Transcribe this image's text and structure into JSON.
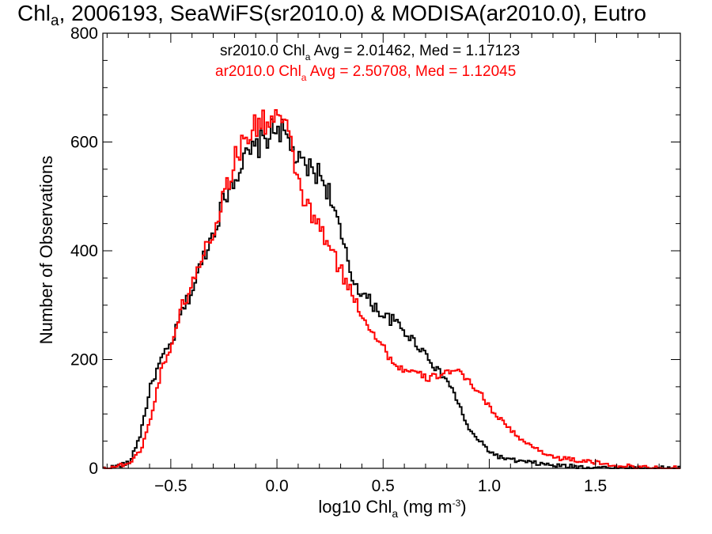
{
  "chart_data": {
    "type": "line",
    "step": true,
    "title": {
      "main": "Chl",
      "sub": "a",
      "rest": ", 2006193, SeaWiFS(sr2010.0) & MODISA(ar2010.0), Eutro"
    },
    "xlabel": {
      "pre": "log10 Chl",
      "sub": "a",
      "mid": " (mg m",
      "sup": "-3",
      "post": ")"
    },
    "ylabel": "Number of Observations",
    "xlim": [
      -0.82,
      1.9
    ],
    "ylim": [
      0,
      800
    ],
    "x_ticks": [
      -0.5,
      0.0,
      0.5,
      1.0,
      1.5
    ],
    "x_tick_labels": [
      "−0.5",
      "0.0",
      "0.5",
      "1.0",
      "1.5"
    ],
    "y_ticks": [
      0,
      200,
      400,
      600,
      800
    ],
    "y_tick_labels": [
      "0",
      "200",
      "400",
      "600",
      "800"
    ],
    "grid": false,
    "legend_position": "top-center",
    "series": [
      {
        "name": "sr2010.0",
        "color": "#000000",
        "legend": {
          "pre": "sr2010.0 Chl",
          "sub": "a",
          "post": " Avg = 2.01462, Med = 1.17123"
        },
        "x": [
          -0.8,
          -0.7,
          -0.65,
          -0.6,
          -0.55,
          -0.5,
          -0.45,
          -0.4,
          -0.35,
          -0.3,
          -0.25,
          -0.2,
          -0.15,
          -0.1,
          -0.05,
          0.0,
          0.05,
          0.1,
          0.15,
          0.2,
          0.25,
          0.3,
          0.35,
          0.4,
          0.45,
          0.5,
          0.55,
          0.6,
          0.65,
          0.7,
          0.75,
          0.8,
          0.85,
          0.9,
          0.95,
          1.0,
          1.05,
          1.1,
          1.2,
          1.3,
          1.4,
          1.5,
          1.6,
          1.7,
          1.8,
          1.9
        ],
        "y": [
          0,
          10,
          60,
          150,
          200,
          230,
          290,
          330,
          390,
          440,
          500,
          540,
          570,
          590,
          610,
          630,
          600,
          560,
          550,
          540,
          500,
          420,
          350,
          320,
          300,
          280,
          270,
          250,
          230,
          210,
          180,
          160,
          120,
          70,
          50,
          30,
          20,
          15,
          10,
          5,
          3,
          2,
          0,
          0,
          0,
          0
        ]
      },
      {
        "name": "ar2010.0",
        "color": "#ff0000",
        "legend": {
          "pre": "ar2010.0 Chl",
          "sub": "a",
          "post": " Avg = 2.50708, Med = 1.12045"
        },
        "x": [
          -0.8,
          -0.7,
          -0.65,
          -0.6,
          -0.55,
          -0.5,
          -0.45,
          -0.4,
          -0.35,
          -0.3,
          -0.25,
          -0.2,
          -0.15,
          -0.1,
          -0.05,
          0.0,
          0.05,
          0.1,
          0.15,
          0.2,
          0.25,
          0.3,
          0.35,
          0.4,
          0.45,
          0.5,
          0.55,
          0.6,
          0.65,
          0.7,
          0.75,
          0.8,
          0.85,
          0.9,
          0.95,
          1.0,
          1.05,
          1.1,
          1.15,
          1.2,
          1.3,
          1.4,
          1.5,
          1.6,
          1.7,
          1.8,
          1.9
        ],
        "y": [
          0,
          10,
          30,
          90,
          180,
          230,
          300,
          340,
          400,
          440,
          510,
          570,
          610,
          630,
          640,
          650,
          610,
          520,
          470,
          440,
          400,
          360,
          320,
          280,
          250,
          220,
          190,
          180,
          175,
          165,
          170,
          180,
          175,
          160,
          140,
          110,
          90,
          70,
          50,
          40,
          20,
          15,
          10,
          5,
          2,
          0,
          0
        ]
      }
    ]
  }
}
